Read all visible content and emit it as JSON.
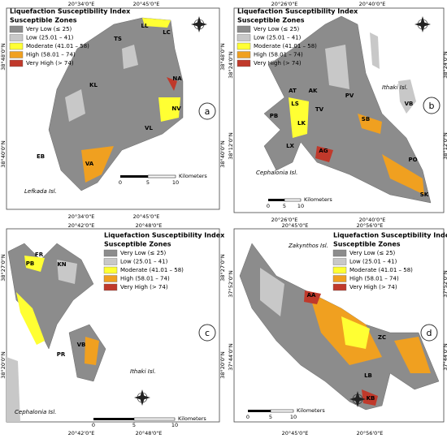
{
  "legend": {
    "title": "Liquefaction Susceptibility Index",
    "subtitle": "Susceptible Zones",
    "items": [
      {
        "label": "Very Low (≤ 25)",
        "color": "#8c8c8c"
      },
      {
        "label": "Low (25.01 – 41)",
        "color": "#c8c8c8"
      },
      {
        "label": "Moderate (41.01 – 58)",
        "color": "#ffff33"
      },
      {
        "label": "High (58.01 – 74)",
        "color": "#f0a020"
      },
      {
        "label": "Very High (> 74)",
        "color": "#c0392b"
      }
    ]
  },
  "panels": [
    {
      "letter": "a",
      "x_coords": [
        "20°34'0\"E",
        "20°45'0\"E"
      ],
      "y_coords": [
        "38°48'0\"N",
        "38°40'0\"N"
      ],
      "places": [
        "LL",
        "LC",
        "TS",
        "KL",
        "NA",
        "NV",
        "VL",
        "EB",
        "VA"
      ],
      "islands": [
        "Lefkada Isl."
      ],
      "scale": {
        "ticks": [
          "0",
          "5",
          "10"
        ],
        "unit": "Kilometers"
      }
    },
    {
      "letter": "b",
      "x_coords": [
        "20°26'0\"E",
        "20°40'0\"E"
      ],
      "y_coords": [
        "38°24'0\"N",
        "38°12'0\"N"
      ],
      "places": [
        "AT",
        "AK",
        "LS",
        "TV",
        "PV",
        "PB",
        "LK",
        "SB",
        "LX",
        "AG",
        "PO",
        "SK",
        "VB"
      ],
      "islands": [
        "Ithaki Isl.",
        "Cephalonia Isl."
      ],
      "scale": {
        "ticks": [
          "0",
          "5",
          "10"
        ],
        "unit": "Kilometers"
      }
    },
    {
      "letter": "c",
      "x_coords": [
        "20°42'0\"E",
        "20°48'0\"E"
      ],
      "y_coords": [
        "38°27'0\"N",
        "38°20'0\"N"
      ],
      "places": [
        "FR",
        "PB",
        "KN",
        "PR",
        "VB"
      ],
      "islands": [
        "Ithaki Isl.",
        "Cephalonia Isl."
      ],
      "scale": {
        "ticks": [
          "0",
          "5",
          "10"
        ],
        "unit": "Kilometers"
      }
    },
    {
      "letter": "d",
      "x_coords": [
        "20°45'0\"E",
        "20°56'0\"E"
      ],
      "y_coords": [
        "37°52'0\"N",
        "37°44'0\"N"
      ],
      "places": [
        "AA",
        "ZC",
        "LB",
        "KB"
      ],
      "islands": [
        "Zakynthos Isl."
      ],
      "scale": {
        "ticks": [
          "0",
          "5",
          "10"
        ],
        "unit": "Kilometers"
      }
    }
  ]
}
